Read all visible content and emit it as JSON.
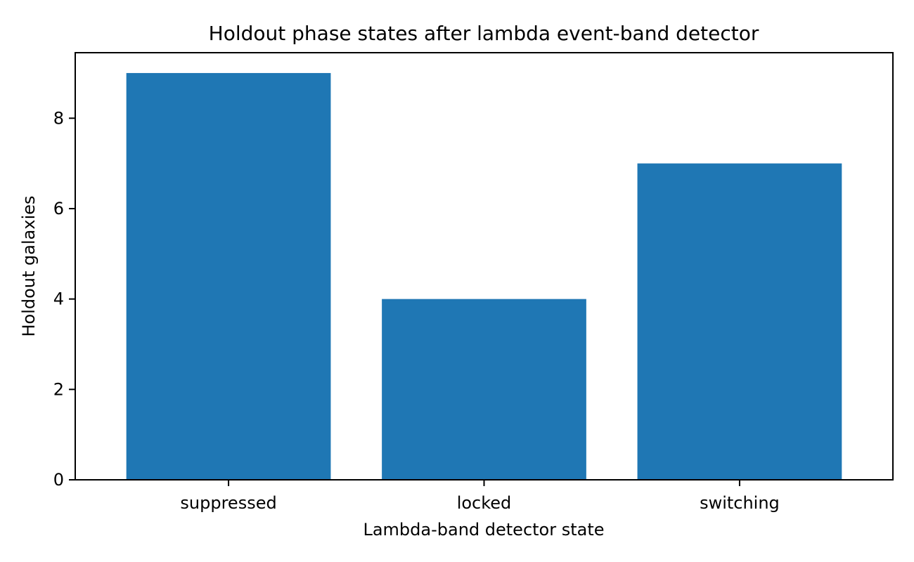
{
  "chart_data": {
    "type": "bar",
    "title": "Holdout phase states after lambda event-band detector",
    "xlabel": "Lambda-band detector state",
    "ylabel": "Holdout galaxies",
    "categories": [
      "suppressed",
      "locked",
      "switching"
    ],
    "values": [
      9,
      4,
      7
    ],
    "ylim": [
      0,
      9.45
    ],
    "yticks": [
      0,
      2,
      4,
      6,
      8
    ],
    "grid": false,
    "bar_color": "#1f77b4"
  }
}
